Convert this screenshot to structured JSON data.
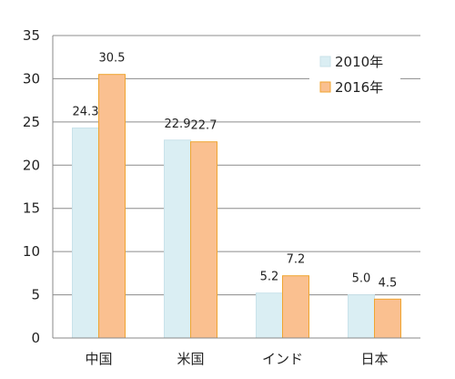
{
  "chart_data": {
    "type": "bar",
    "categories": [
      "中国",
      "米国",
      "インド",
      "日本"
    ],
    "series": [
      {
        "name": "2010年",
        "values": [
          24.3,
          22.9,
          5.2,
          5.0
        ],
        "labels": [
          "24.3",
          "22.9",
          "5.2",
          "5.0"
        ],
        "color": "#daeef3",
        "stroke": "#c9e2ea"
      },
      {
        "name": "2016年",
        "values": [
          30.5,
          22.7,
          7.2,
          4.5
        ],
        "labels": [
          "30.5",
          "22.7",
          "7.2",
          "4.5"
        ],
        "color": "#fac090",
        "stroke": "#f0a530"
      }
    ],
    "yticks": [
      "0",
      "5",
      "10",
      "15",
      "20",
      "25",
      "30",
      "35"
    ],
    "ylim": [
      0,
      35
    ],
    "grid": true,
    "legend": "top-right"
  }
}
